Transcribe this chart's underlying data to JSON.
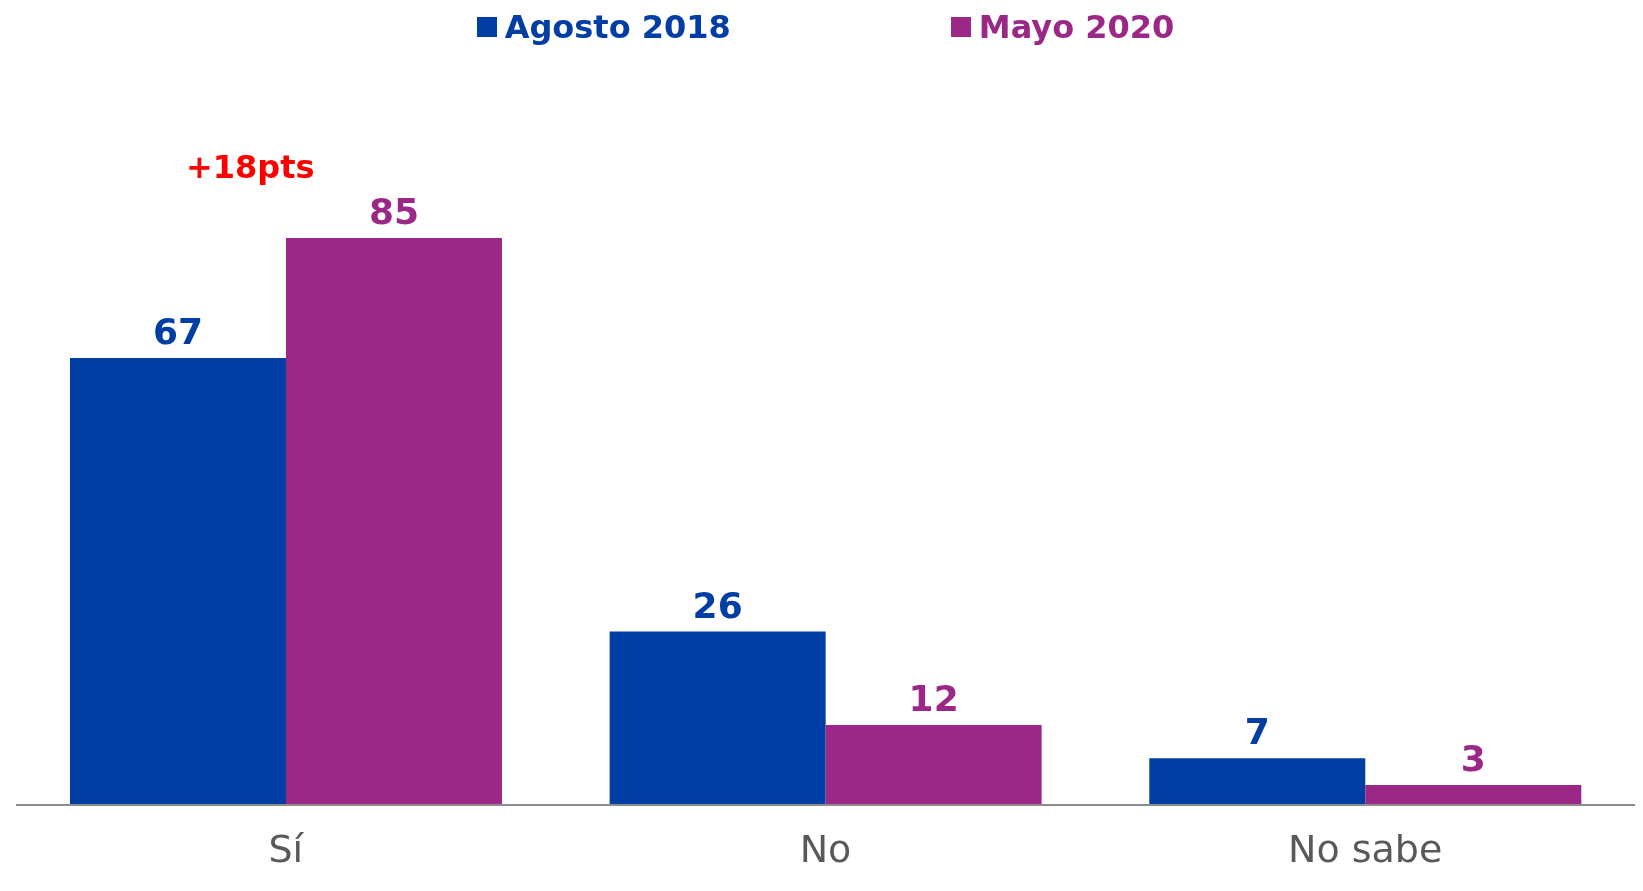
{
  "chart_data": {
    "type": "bar",
    "categories": [
      "Sí",
      "No",
      "No sabe"
    ],
    "series": [
      {
        "name": "Agosto 2018",
        "color": "#003da5",
        "values": [
          67,
          26,
          7
        ]
      },
      {
        "name": "Mayo 2020",
        "color": "#9b2887",
        "values": [
          85,
          12,
          3
        ]
      }
    ],
    "data_labels": true,
    "legend": "top",
    "grid": false,
    "annotations": [
      "+18pts"
    ]
  }
}
